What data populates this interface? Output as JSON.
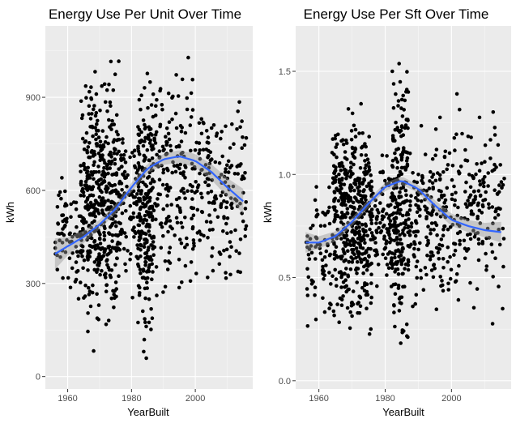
{
  "chart_data": [
    {
      "type": "scatter",
      "title": "Energy Use Per Unit Over Time",
      "xlabel": "YearBuilt",
      "ylabel": "kWh",
      "xlim": [
        1953,
        2018
      ],
      "ylim": [
        -40,
        1130
      ],
      "xticks": [
        1960,
        1980,
        2000
      ],
      "yticks": [
        0,
        300,
        600,
        900
      ],
      "grid": true,
      "background": "#ebebeb",
      "point_color": "#000000",
      "smooth_color": "#3366ff",
      "band_color": "#999999",
      "point_clusters": [
        {
          "x_range": [
            1956,
            1964
          ],
          "y_range": [
            180,
            720
          ],
          "count": 70
        },
        {
          "x_range": [
            1964,
            1976
          ],
          "y_range": [
            40,
            1090
          ],
          "count": 460
        },
        {
          "x_range": [
            1976,
            1982
          ],
          "y_range": [
            200,
            900
          ],
          "count": 90
        },
        {
          "x_range": [
            1982,
            1987
          ],
          "y_range": [
            0,
            1110
          ],
          "count": 230
        },
        {
          "x_range": [
            1987,
            2000
          ],
          "y_range": [
            120,
            1110
          ],
          "count": 180
        },
        {
          "x_range": [
            2000,
            2016
          ],
          "y_range": [
            200,
            1000
          ],
          "count": 170
        }
      ],
      "smooth": {
        "x": [
          1956,
          1960,
          1965,
          1970,
          1975,
          1980,
          1985,
          1990,
          1995,
          2000,
          2005,
          2010,
          2015
        ],
        "y": [
          395,
          420,
          450,
          490,
          540,
          610,
          670,
          700,
          710,
          695,
          660,
          610,
          565
        ],
        "band": [
          50,
          30,
          20,
          15,
          15,
          15,
          15,
          18,
          20,
          22,
          25,
          30,
          40
        ]
      }
    },
    {
      "type": "scatter",
      "title": "Energy Use Per Sft Over Time",
      "xlabel": "YearBuilt",
      "ylabel": "kWh",
      "xlim": [
        1953,
        2018
      ],
      "ylim": [
        -0.04,
        1.72
      ],
      "xticks": [
        1960,
        1980,
        2000
      ],
      "yticks": [
        0.0,
        0.5,
        1.0,
        1.5
      ],
      "tick_labels": [
        "0.0",
        "0.5",
        "1.0",
        "1.5"
      ],
      "grid": true,
      "background": "#ebebeb",
      "point_color": "#000000",
      "smooth_color": "#3366ff",
      "band_color": "#999999",
      "point_clusters": [
        {
          "x_range": [
            1956,
            1964
          ],
          "y_range": [
            0.2,
            1.1
          ],
          "count": 70
        },
        {
          "x_range": [
            1964,
            1976
          ],
          "y_range": [
            0.1,
            1.45
          ],
          "count": 460
        },
        {
          "x_range": [
            1976,
            1982
          ],
          "y_range": [
            0.3,
            1.25
          ],
          "count": 90
        },
        {
          "x_range": [
            1982,
            1987
          ],
          "y_range": [
            0.0,
            1.68
          ],
          "count": 230
        },
        {
          "x_range": [
            1987,
            2000
          ],
          "y_range": [
            0.25,
            1.3
          ],
          "count": 180
        },
        {
          "x_range": [
            2000,
            2016
          ],
          "y_range": [
            0.22,
            1.47
          ],
          "count": 170
        }
      ],
      "smooth": {
        "x": [
          1956,
          1960,
          1965,
          1970,
          1975,
          1980,
          1985,
          1990,
          1995,
          2000,
          2005,
          2010,
          2015
        ],
        "y": [
          0.67,
          0.67,
          0.7,
          0.77,
          0.86,
          0.94,
          0.97,
          0.93,
          0.85,
          0.78,
          0.75,
          0.73,
          0.72
        ],
        "band": [
          0.05,
          0.03,
          0.025,
          0.02,
          0.02,
          0.02,
          0.02,
          0.02,
          0.025,
          0.03,
          0.03,
          0.035,
          0.05
        ]
      }
    }
  ]
}
